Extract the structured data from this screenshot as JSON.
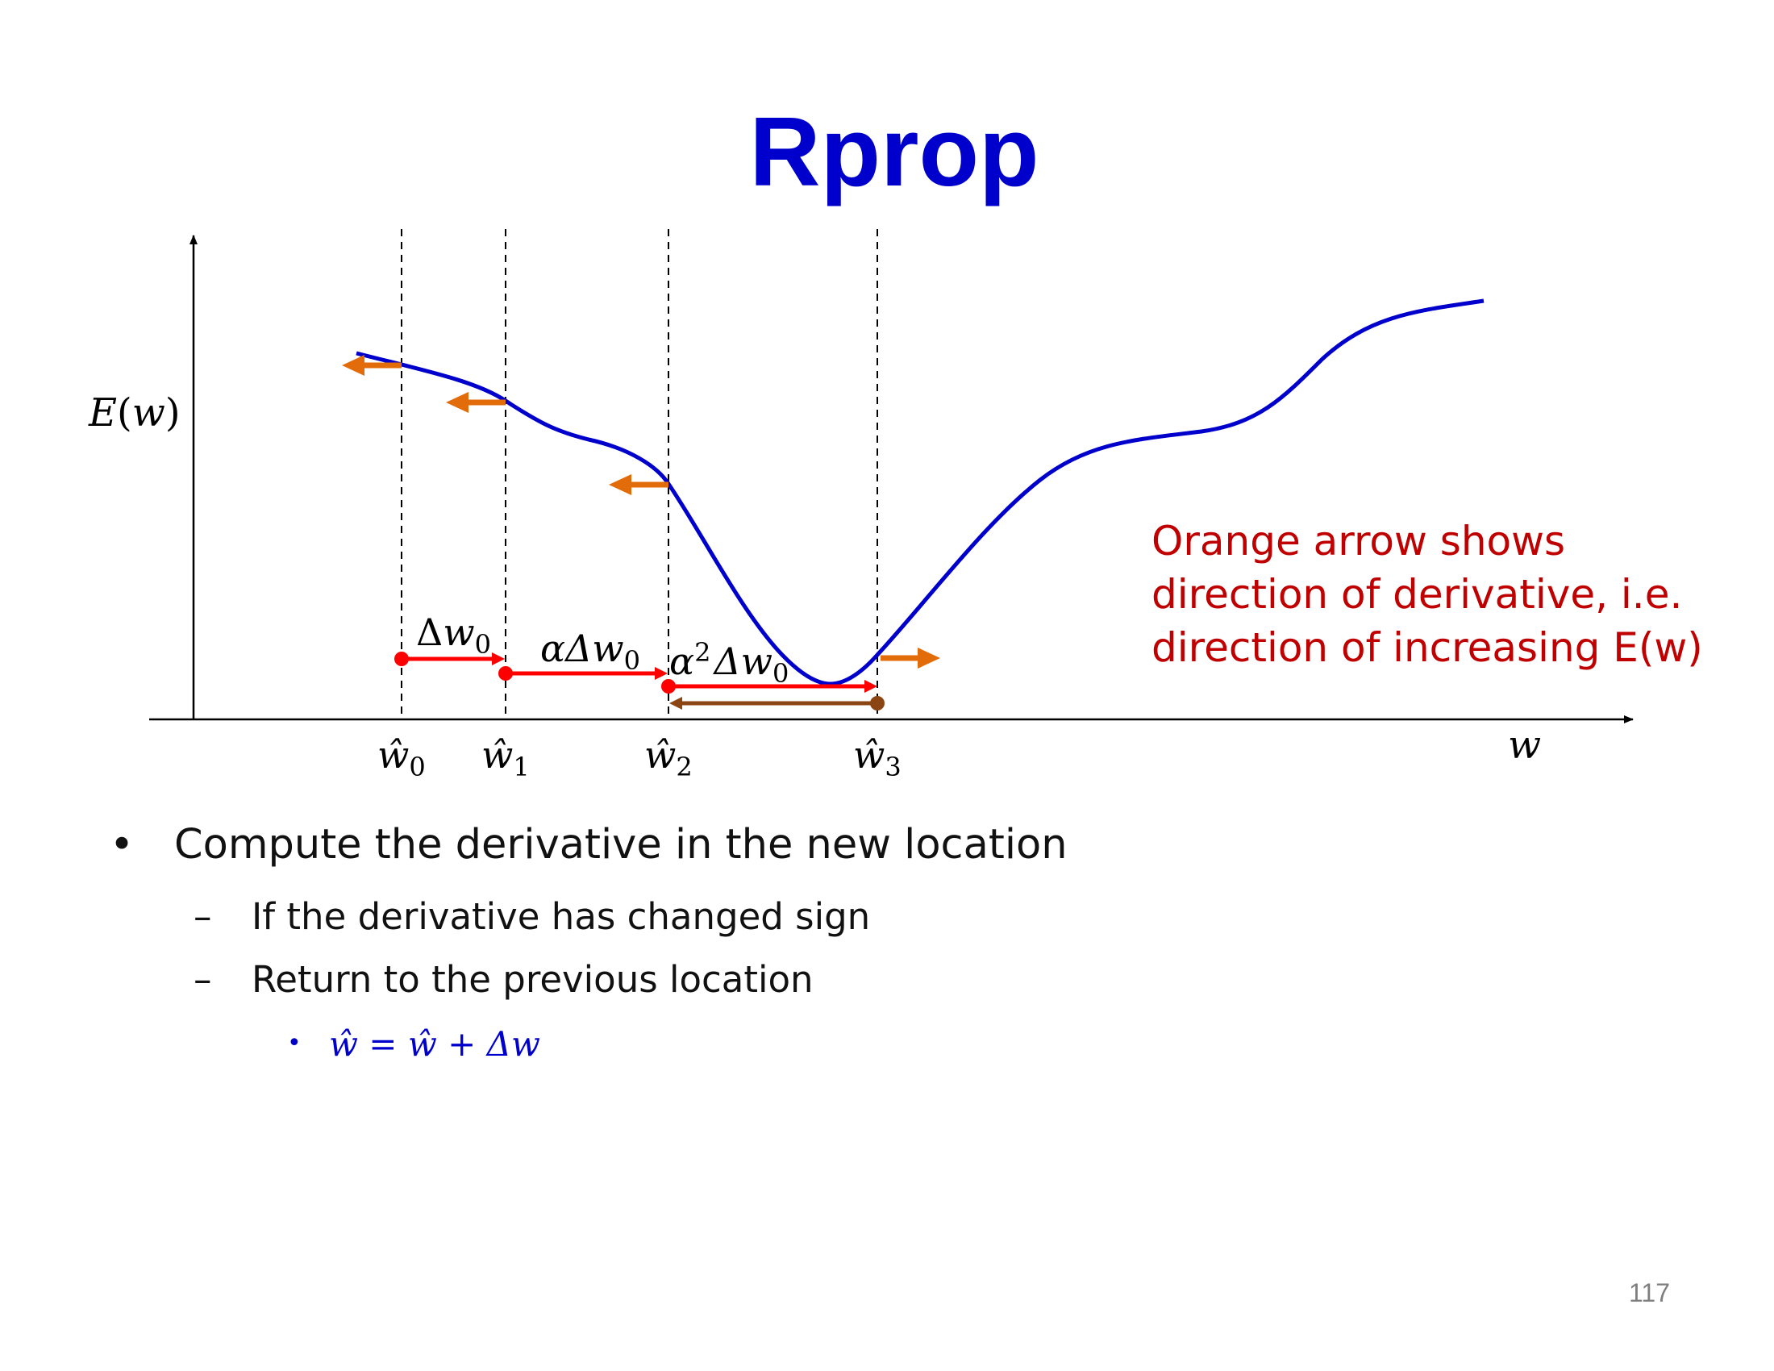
{
  "title": "Rprop",
  "axes": {
    "y_label_E": "E",
    "y_label_w": "w",
    "x_label": "w"
  },
  "markers": [
    {
      "base": "ŵ",
      "sub": "0"
    },
    {
      "base": "ŵ",
      "sub": "1"
    },
    {
      "base": "ŵ",
      "sub": "2"
    },
    {
      "base": "ŵ",
      "sub": "3"
    }
  ],
  "steps": [
    {
      "prefix": "Δ",
      "var": "w",
      "sub": "0",
      "sup": ""
    },
    {
      "prefix": "αΔ",
      "var": "w",
      "sub": "0",
      "sup": ""
    },
    {
      "prefix": "α",
      "var": "Δw",
      "sub": "0",
      "sup": "2"
    }
  ],
  "note": {
    "lines": [
      "Orange arrow shows",
      "direction of derivative, i.e.",
      "direction of  increasing E(w)"
    ]
  },
  "bullets": {
    "main": {
      "marker": "•",
      "text": "Compute the derivative in the new location"
    },
    "subs": [
      {
        "marker": "–",
        "text": "If the derivative has changed sign"
      },
      {
        "marker": "–",
        "text": "Return to the previous location"
      }
    ],
    "formula": {
      "marker": "•",
      "text": "ŵ = ŵ + Δw"
    }
  },
  "colors": {
    "title": "#0000cc",
    "curve": "#0000cc",
    "derivative_arrow": "#e36c0a",
    "step_arrow": "#ff0000",
    "return_arrow": "#8b4513",
    "note": "#c00000"
  },
  "page_number": "117"
}
